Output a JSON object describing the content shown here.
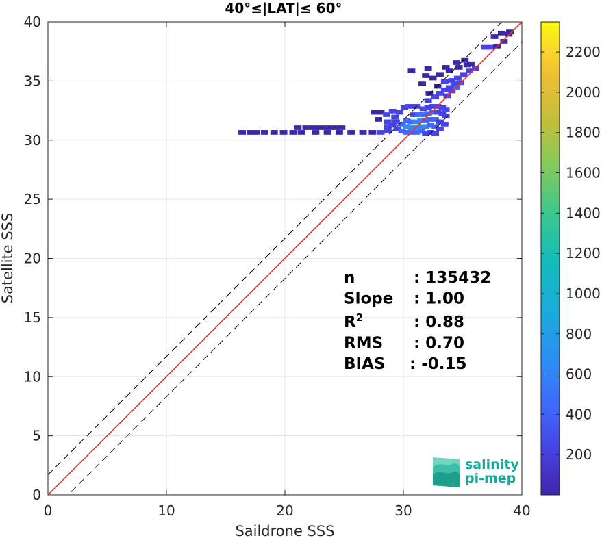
{
  "chart_data": {
    "type": "heatmap",
    "title": "40°≤|LAT|≤ 60°",
    "xlabel": "Saildrone SSS",
    "ylabel": "Satellite SSS",
    "xlim": [
      0,
      40
    ],
    "ylim": [
      0,
      40
    ],
    "xticks": [
      "0",
      "10",
      "20",
      "30",
      "40"
    ],
    "yticks": [
      "0",
      "5",
      "10",
      "15",
      "20",
      "25",
      "30",
      "35",
      "40"
    ],
    "grid": true,
    "reference_lines": {
      "identity": {
        "slope": 1,
        "intercept": 0,
        "style": "solid",
        "color": "#000000"
      },
      "fit": {
        "slope": 1.0,
        "intercept": 0,
        "style": "solid",
        "color": "#e8322c"
      },
      "upper_bound": {
        "slope": 1,
        "intercept": 1.7,
        "style": "dashed",
        "color": "#000000"
      },
      "lower_bound": {
        "slope": 1,
        "intercept": -1.7,
        "style": "dashed",
        "color": "#000000"
      }
    },
    "stats": [
      {
        "label": "n",
        "sep": ":",
        "value": "135432"
      },
      {
        "label": "Slope",
        "sep": ":",
        "value": "1.00"
      },
      {
        "label": "R",
        "sup": "2",
        "sep": ":",
        "value": "0.88"
      },
      {
        "label": "RMS",
        "sep": ":",
        "value": "0.70"
      },
      {
        "label": "BIAS",
        "sep": ":",
        "value": "-0.15"
      }
    ],
    "colorbar": {
      "min": 0,
      "max": 2350,
      "ticks": [
        "200",
        "400",
        "600",
        "800",
        "1000",
        "1200",
        "1400",
        "1600",
        "1800",
        "2000",
        "2200"
      ],
      "colors": [
        "#3e26a8",
        "#4743e5",
        "#4066fb",
        "#2f89f7",
        "#1ca9de",
        "#12bdb8",
        "#3fc88a",
        "#86c95a",
        "#c2bf3b",
        "#ecbd35",
        "#fad62e",
        "#f9fb0e"
      ]
    },
    "density_cells": [
      [
        16.3,
        30.7,
        25
      ],
      [
        17.0,
        30.7,
        25
      ],
      [
        17.5,
        30.7,
        25
      ],
      [
        18.2,
        30.7,
        25
      ],
      [
        19.0,
        30.7,
        40
      ],
      [
        19.8,
        30.7,
        40
      ],
      [
        20.6,
        30.7,
        40
      ],
      [
        21.3,
        30.7,
        50
      ],
      [
        21.0,
        31.1,
        30
      ],
      [
        21.7,
        31.1,
        30
      ],
      [
        22.3,
        31.1,
        30
      ],
      [
        22.9,
        31.1,
        30
      ],
      [
        23.5,
        31.1,
        30
      ],
      [
        24.1,
        31.1,
        30
      ],
      [
        24.7,
        31.1,
        30
      ],
      [
        22.5,
        30.7,
        60
      ],
      [
        23.5,
        30.7,
        60
      ],
      [
        24.5,
        30.7,
        60
      ],
      [
        25.5,
        30.7,
        80
      ],
      [
        26.5,
        30.7,
        80
      ],
      [
        27.3,
        30.7,
        100
      ],
      [
        28.0,
        30.7,
        150
      ],
      [
        28.6,
        30.8,
        200
      ],
      [
        27.5,
        32.4,
        80
      ],
      [
        28.0,
        32.4,
        100
      ],
      [
        28.5,
        32.2,
        120
      ],
      [
        27.8,
        31.8,
        90
      ],
      [
        28.6,
        31.6,
        120
      ],
      [
        29.0,
        31.3,
        250
      ],
      [
        29.4,
        31.0,
        300
      ],
      [
        29.8,
        30.8,
        400
      ],
      [
        30.2,
        30.7,
        500
      ],
      [
        30.6,
        30.7,
        500
      ],
      [
        31.0,
        30.7,
        450
      ],
      [
        31.4,
        30.8,
        350
      ],
      [
        31.8,
        30.6,
        300
      ],
      [
        32.2,
        30.7,
        300
      ],
      [
        32.6,
        30.6,
        250
      ],
      [
        29.3,
        31.6,
        300
      ],
      [
        29.8,
        31.4,
        400
      ],
      [
        30.2,
        31.2,
        550
      ],
      [
        30.6,
        31.1,
        650
      ],
      [
        31.0,
        31.1,
        700
      ],
      [
        31.4,
        31.2,
        650
      ],
      [
        31.8,
        31.2,
        550
      ],
      [
        32.2,
        31.3,
        450
      ],
      [
        32.6,
        31.2,
        350
      ],
      [
        33.0,
        31.0,
        250
      ],
      [
        30.2,
        31.7,
        400
      ],
      [
        30.6,
        31.6,
        500
      ],
      [
        31.0,
        31.6,
        600
      ],
      [
        31.4,
        31.7,
        550
      ],
      [
        31.8,
        31.7,
        500
      ],
      [
        32.2,
        31.8,
        400
      ],
      [
        32.6,
        31.8,
        350
      ],
      [
        33.0,
        31.6,
        300
      ],
      [
        33.4,
        31.4,
        250
      ],
      [
        30.8,
        32.2,
        300
      ],
      [
        31.2,
        32.2,
        350
      ],
      [
        31.6,
        32.2,
        400
      ],
      [
        32.0,
        32.3,
        400
      ],
      [
        32.4,
        32.4,
        350
      ],
      [
        32.8,
        32.4,
        300
      ],
      [
        33.2,
        32.3,
        250
      ],
      [
        33.5,
        32.1,
        200
      ],
      [
        31.6,
        32.7,
        200
      ],
      [
        32.0,
        32.8,
        250
      ],
      [
        32.4,
        32.9,
        250
      ],
      [
        32.8,
        32.9,
        200
      ],
      [
        33.2,
        32.8,
        180
      ],
      [
        33.5,
        32.6,
        150
      ],
      [
        31.0,
        32.9,
        120
      ],
      [
        32.0,
        33.4,
        120
      ],
      [
        32.6,
        33.7,
        150
      ],
      [
        33.0,
        34.0,
        150
      ],
      [
        33.4,
        34.3,
        200
      ],
      [
        33.8,
        34.5,
        250
      ],
      [
        34.2,
        34.8,
        200
      ],
      [
        33.6,
        33.8,
        150
      ],
      [
        34.0,
        34.2,
        300
      ],
      [
        34.4,
        34.5,
        350
      ],
      [
        34.7,
        34.9,
        300
      ],
      [
        34.0,
        35.1,
        150
      ],
      [
        34.5,
        35.3,
        200
      ],
      [
        35.0,
        35.6,
        250
      ],
      [
        35.5,
        35.9,
        250
      ],
      [
        36.0,
        36.1,
        200
      ],
      [
        33.4,
        35.0,
        120
      ],
      [
        32.8,
        34.6,
        100
      ],
      [
        32.4,
        35.3,
        80
      ],
      [
        33.0,
        35.6,
        80
      ],
      [
        33.8,
        35.9,
        100
      ],
      [
        34.6,
        36.2,
        100
      ],
      [
        35.3,
        36.4,
        90
      ],
      [
        32.0,
        36.1,
        60
      ],
      [
        33.5,
        36.2,
        60
      ],
      [
        34.4,
        36.6,
        60
      ],
      [
        35.1,
        36.8,
        60
      ],
      [
        35.6,
        36.5,
        80
      ],
      [
        30.6,
        35.9,
        40
      ],
      [
        31.8,
        35.5,
        50
      ],
      [
        31.5,
        34.8,
        50
      ],
      [
        32.1,
        34.0,
        60
      ],
      [
        29.2,
        32.0,
        150
      ],
      [
        29.6,
        32.4,
        180
      ],
      [
        30.0,
        32.8,
        200
      ],
      [
        30.4,
        32.9,
        180
      ],
      [
        36.8,
        37.9,
        120
      ],
      [
        37.3,
        37.9,
        150
      ],
      [
        37.8,
        38.0,
        100
      ],
      [
        38.4,
        38.4,
        60
      ],
      [
        38.8,
        39.0,
        60
      ],
      [
        38.9,
        39.2,
        50
      ],
      [
        37.6,
        38.8,
        40
      ],
      [
        38.2,
        39.1,
        40
      ],
      [
        29.0,
        32.5,
        200
      ],
      [
        28.6,
        31.2,
        180
      ]
    ],
    "logo": {
      "line1": "salinity",
      "line2": "pi-mep"
    }
  }
}
